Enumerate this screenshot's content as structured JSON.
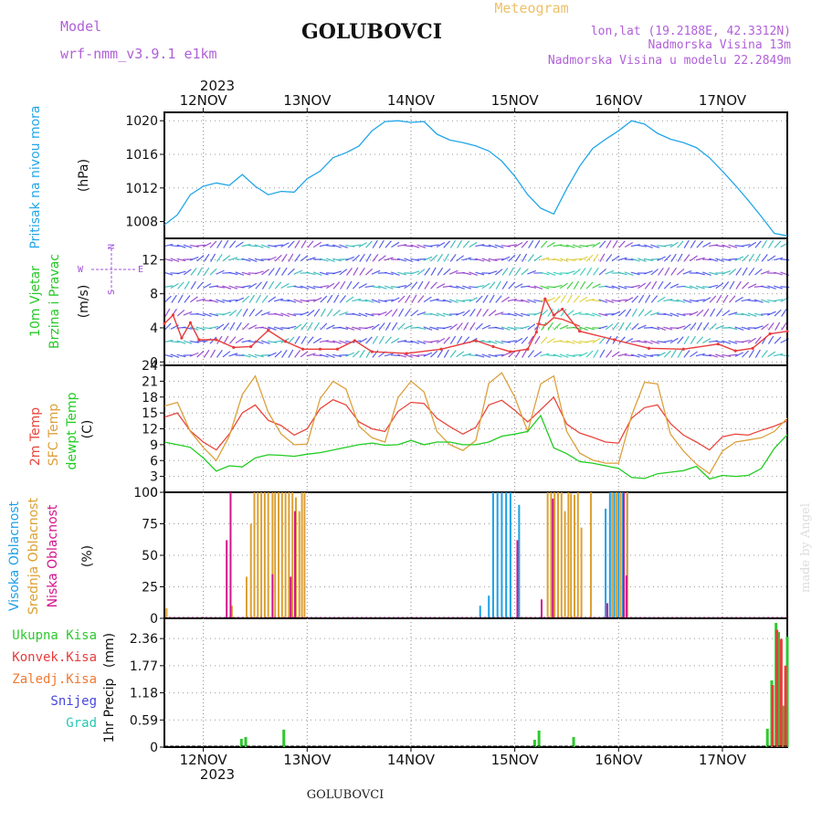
{
  "header": {
    "model_label": "Model",
    "model_name": "wrf-nmm_v3.9.1 e1km",
    "station": "GOLUBOVCI",
    "product": "Meteogram",
    "coords": "lon,lat (19.2188E, 42.3312N)",
    "altitude": "Nadmorska Visina 13m",
    "model_altitude": "Nadmorska Visina u modelu 22.2849m"
  },
  "footer": {
    "station": "GOLUBOVCI",
    "credit": "made by Angel"
  },
  "colors": {
    "pressure": "#22a6e8",
    "temp2m": "#e8463c",
    "sfc_temp": "#dca03c",
    "dewpoint": "#22cc22",
    "cloud_high": "#1ea0e6",
    "cloud_mid": "#dca032",
    "cloud_low": "#d2148c",
    "rain_total": "#2ec82e",
    "rain_conv": "#e83c3c",
    "rain_frozen": "#f07832",
    "snow": "#4646dc",
    "graupel": "#28c8b4",
    "wind_label": "#28c828",
    "wind_speed_gust": "#e83c3c",
    "wind_label_2": "#a050dc"
  },
  "chart_data": {
    "time_axis": {
      "start": "2023-11-11 15:00",
      "end": "2023-11-17 15:00",
      "year": "2023",
      "day_labels": [
        "12NOV",
        "13NOV",
        "14NOV",
        "15NOV",
        "16NOV",
        "17NOV"
      ],
      "day_dates": [
        "2023-11-12",
        "2023-11-13",
        "2023-11-14",
        "2023-11-15",
        "2023-11-16",
        "2023-11-17"
      ]
    },
    "panels": [
      {
        "id": "pressure",
        "type": "line",
        "ylabel": "Pritisak na nivou mora",
        "unit": "(hPa)",
        "yticks": [
          "1008",
          "1012",
          "1016",
          "1020"
        ],
        "ylim": [
          1006,
          1021
        ],
        "series": [
          {
            "color_key": "pressure",
            "x_hours": [
              0,
              3,
              6,
              9,
              12,
              15,
              18,
              21,
              24,
              27,
              30,
              33,
              36,
              39,
              42,
              45,
              48,
              51,
              54,
              57,
              60,
              63,
              66,
              69,
              72,
              75,
              78,
              81,
              84,
              87,
              90,
              93,
              96,
              99,
              102,
              105,
              108,
              111,
              114,
              117,
              120,
              123,
              126,
              129,
              132,
              135,
              138,
              141,
              144
            ],
            "values": [
              1007.6,
              1008.8,
              1011.2,
              1012.2,
              1012.6,
              1012.3,
              1013.6,
              1012.2,
              1011.2,
              1011.6,
              1011.5,
              1013.1,
              1014.0,
              1015.6,
              1016.2,
              1017.0,
              1018.8,
              1019.9,
              1020.0,
              1019.8,
              1019.9,
              1018.4,
              1017.7,
              1017.4,
              1017.0,
              1016.4,
              1015.2,
              1013.4,
              1011.2,
              1009.6,
              1008.9,
              1011.9,
              1014.6,
              1016.7,
              1017.8,
              1018.8,
              1020.0,
              1019.6,
              1018.5,
              1017.8,
              1017.4,
              1016.8,
              1015.6,
              1014.0,
              1012.3,
              1010.5,
              1008.6,
              1006.6,
              1006.3
            ]
          }
        ]
      },
      {
        "id": "wind",
        "type": "line",
        "ylabel_lines": [
          "10m Vjetar",
          "Brzina i Pravac"
        ],
        "unit": "(m/s)",
        "yticks": [
          "0",
          "4",
          "8",
          "12"
        ],
        "ylim": [
          -0.4,
          14.5
        ],
        "compass": {
          "north": "N",
          "west": "W",
          "east": "E",
          "south": "S"
        },
        "series": [
          {
            "color_key": "wind_speed_gust",
            "x_hours": [
              0,
              2,
              4,
              6,
              8,
              12,
              16,
              20,
              24,
              28,
              32,
              36,
              40,
              44,
              48,
              56,
              64,
              72,
              76,
              80,
              84,
              86,
              88,
              90,
              92,
              96,
              104,
              112,
              120,
              128,
              132,
              136,
              140,
              144
            ],
            "values": [
              4.5,
              5.5,
              2.8,
              4.6,
              2.6,
              2.6,
              1.7,
              1.8,
              3.7,
              2.4,
              1.5,
              1.5,
              1.5,
              2.5,
              1.2,
              1.0,
              1.5,
              2.5,
              1.8,
              1.2,
              1.5,
              3.5,
              7.4,
              5.5,
              6.2,
              3.6,
              2.6,
              1.6,
              1.5,
              2.1,
              1.3,
              1.6,
              3.3,
              3.6
            ]
          },
          {
            "color_key": "temp2m",
            "x_hours": [
              86,
              88,
              90,
              92,
              94,
              96
            ],
            "values": [
              4.5,
              4.3,
              5.2,
              5.0,
              4.6,
              4.2
            ]
          }
        ]
      },
      {
        "id": "temperature",
        "type": "line",
        "ylabel_lines": [
          "2m Temp",
          "SFC Temp",
          "dewpt Temp"
        ],
        "unit": "(C)",
        "yticks": [
          "0",
          "3",
          "6",
          "9",
          "12",
          "15",
          "18",
          "21",
          "24"
        ],
        "ylim": [
          0,
          24
        ],
        "series": [
          {
            "name": "2m Temp",
            "color_key": "temp2m",
            "x_hours": [
              0,
              3,
              6,
              9,
              12,
              15,
              18,
              21,
              24,
              27,
              30,
              33,
              36,
              39,
              42,
              45,
              48,
              51,
              54,
              57,
              60,
              63,
              66,
              69,
              72,
              75,
              78,
              81,
              84,
              87,
              90,
              93,
              96,
              99,
              102,
              105,
              108,
              111,
              114,
              117,
              120,
              123,
              126,
              129,
              132,
              135,
              138,
              141,
              144
            ],
            "values": [
              14.2,
              15.0,
              11.6,
              9.5,
              8.0,
              11.0,
              15.0,
              16.5,
              13.6,
              12.6,
              10.8,
              12.0,
              15.8,
              17.5,
              16.5,
              13.3,
              12.0,
              11.5,
              15.3,
              17.0,
              16.8,
              14.0,
              12.4,
              11.0,
              12.3,
              16.5,
              17.4,
              15.5,
              13.3,
              15.6,
              18.0,
              12.9,
              11.2,
              10.4,
              9.5,
              9.3,
              14.0,
              16.0,
              16.5,
              13.0,
              10.8,
              9.5,
              8.0,
              10.5,
              11.0,
              10.8,
              11.7,
              12.5,
              13.5
            ]
          },
          {
            "name": "SFC Temp",
            "color_key": "sfc_temp",
            "x_hours": [
              0,
              3,
              6,
              9,
              12,
              15,
              18,
              21,
              24,
              27,
              30,
              33,
              36,
              39,
              42,
              45,
              48,
              51,
              54,
              57,
              60,
              63,
              66,
              69,
              72,
              75,
              78,
              81,
              84,
              87,
              90,
              93,
              96,
              99,
              102,
              105,
              108,
              111,
              114,
              117,
              120,
              123,
              126,
              129,
              132,
              135,
              138,
              141,
              144
            ],
            "values": [
              16.3,
              17.0,
              11.5,
              8.5,
              6.0,
              10.6,
              18.5,
              22.0,
              15.1,
              11.0,
              9.0,
              9.1,
              17.7,
              21.0,
              19.5,
              12.5,
              10.3,
              9.5,
              17.9,
              21.0,
              19.0,
              11.5,
              9.0,
              7.9,
              9.8,
              20.6,
              22.6,
              18.0,
              11.5,
              20.5,
              22.0,
              11.5,
              7.4,
              6.1,
              5.5,
              5.5,
              14.5,
              20.8,
              20.5,
              11.0,
              7.8,
              5.3,
              3.5,
              7.8,
              9.5,
              9.9,
              10.3,
              11.5,
              14.0
            ]
          },
          {
            "name": "dewpt Temp",
            "color_key": "dewpoint",
            "x_hours": [
              0,
              3,
              6,
              9,
              12,
              15,
              18,
              21,
              24,
              27,
              30,
              33,
              36,
              39,
              42,
              45,
              48,
              51,
              54,
              57,
              60,
              63,
              66,
              69,
              72,
              75,
              78,
              81,
              84,
              87,
              90,
              93,
              96,
              99,
              102,
              105,
              108,
              111,
              114,
              117,
              120,
              123,
              126,
              129,
              132,
              135,
              138,
              141,
              144
            ],
            "values": [
              9.5,
              9.0,
              8.5,
              6.5,
              4.0,
              5.0,
              4.8,
              6.5,
              7.1,
              7.0,
              6.8,
              7.2,
              7.5,
              8.0,
              8.5,
              9.0,
              9.3,
              8.9,
              9.0,
              9.8,
              9.0,
              9.5,
              9.5,
              9.0,
              9.0,
              9.5,
              10.6,
              11.0,
              11.5,
              14.5,
              8.4,
              7.3,
              5.8,
              5.5,
              5.0,
              4.5,
              2.8,
              2.6,
              3.5,
              3.8,
              4.1,
              4.9,
              2.5,
              3.2,
              3.0,
              3.2,
              4.5,
              8.3,
              10.9
            ]
          }
        ]
      },
      {
        "id": "clouds",
        "type": "bar",
        "ylabel_lines": [
          "Visoka Oblacnost",
          "Srednja Oblacnost",
          "Niska Oblacnost"
        ],
        "unit": "(%)",
        "yticks": [
          "0",
          "25",
          "50",
          "75",
          "100"
        ],
        "ylim": [
          0,
          100
        ],
        "series": [
          {
            "name": "Visoka Oblacnost",
            "color_key": "cloud_high",
            "x_hours": [
              73,
              75,
              76,
              77,
              78,
              79,
              80,
              82,
              102,
              103,
              104,
              105,
              106,
              107
            ],
            "values": [
              10,
              18,
              100,
              100,
              100,
              100,
              100,
              90,
              87,
              100,
              100,
              100,
              100,
              100
            ]
          },
          {
            "name": "Srednja Oblacnost",
            "color_key": "cloud_mid",
            "x_hours": [
              0.5,
              15.6,
              19,
              20,
              20.8,
              21.6,
              22.4,
              23.2,
              24,
              25,
              25.6,
              26.4,
              27.2,
              28,
              28.8,
              29.6,
              30.4,
              31.2,
              31.8,
              32.4,
              88.6,
              89.4,
              90.2,
              91,
              91.8,
              92.6,
              93.4,
              94,
              94.8,
              95.6,
              96.4,
              98.6,
              103.5,
              104.5,
              105.5,
              106.2,
              107
            ],
            "values": [
              8,
              10,
              33,
              75,
              100,
              100,
              100,
              100,
              100,
              100,
              100,
              100,
              100,
              100,
              100,
              100,
              96,
              85,
              100,
              100,
              100,
              100,
              100,
              100,
              100,
              85,
              100,
              99,
              98,
              100,
              72,
              100,
              100,
              100,
              100,
              100,
              100
            ]
          },
          {
            "name": "Niska Oblacnost",
            "color_key": "cloud_low",
            "x_hours": [
              14.4,
              15.3,
              25,
              29.2,
              30.2,
              81.6,
              87.2,
              89.8,
              102.4,
              106.2,
              106.8
            ],
            "values": [
              62,
              100,
              35,
              33,
              85,
              62,
              15,
              95,
              12,
              100,
              34
            ]
          }
        ]
      },
      {
        "id": "precip",
        "type": "bar",
        "ylabel": "1hr Precip",
        "unit": "(mm)",
        "yticks": [
          "0",
          "0.59",
          "1.18",
          "1.77",
          "2.36"
        ],
        "ylim": [
          0,
          2.8
        ],
        "legend": [
          "Ukupna Kisa",
          "Konvek.Kisa",
          "Zaledj.Kisa",
          "Snijeg",
          "Grad"
        ],
        "series": [
          {
            "name": "Ukupna Kisa",
            "color_key": "rain_total",
            "x_hours": [
              17.8,
              18.8,
              27.6,
              85.6,
              86.6,
              94.6,
              139.4,
              140.4,
              141.4,
              142.0,
              143.2,
              144.0
            ],
            "values": [
              0.18,
              0.22,
              0.38,
              0.16,
              0.36,
              0.22,
              0.4,
              1.45,
              2.7,
              2.5,
              0.9,
              2.4
            ]
          },
          {
            "name": "Konvek.Kisa",
            "color_key": "rain_conv",
            "x_hours": [
              140.6,
              141.6,
              142.6,
              143.6
            ],
            "values": [
              1.35,
              2.55,
              2.35,
              1.77
            ]
          }
        ]
      }
    ]
  }
}
